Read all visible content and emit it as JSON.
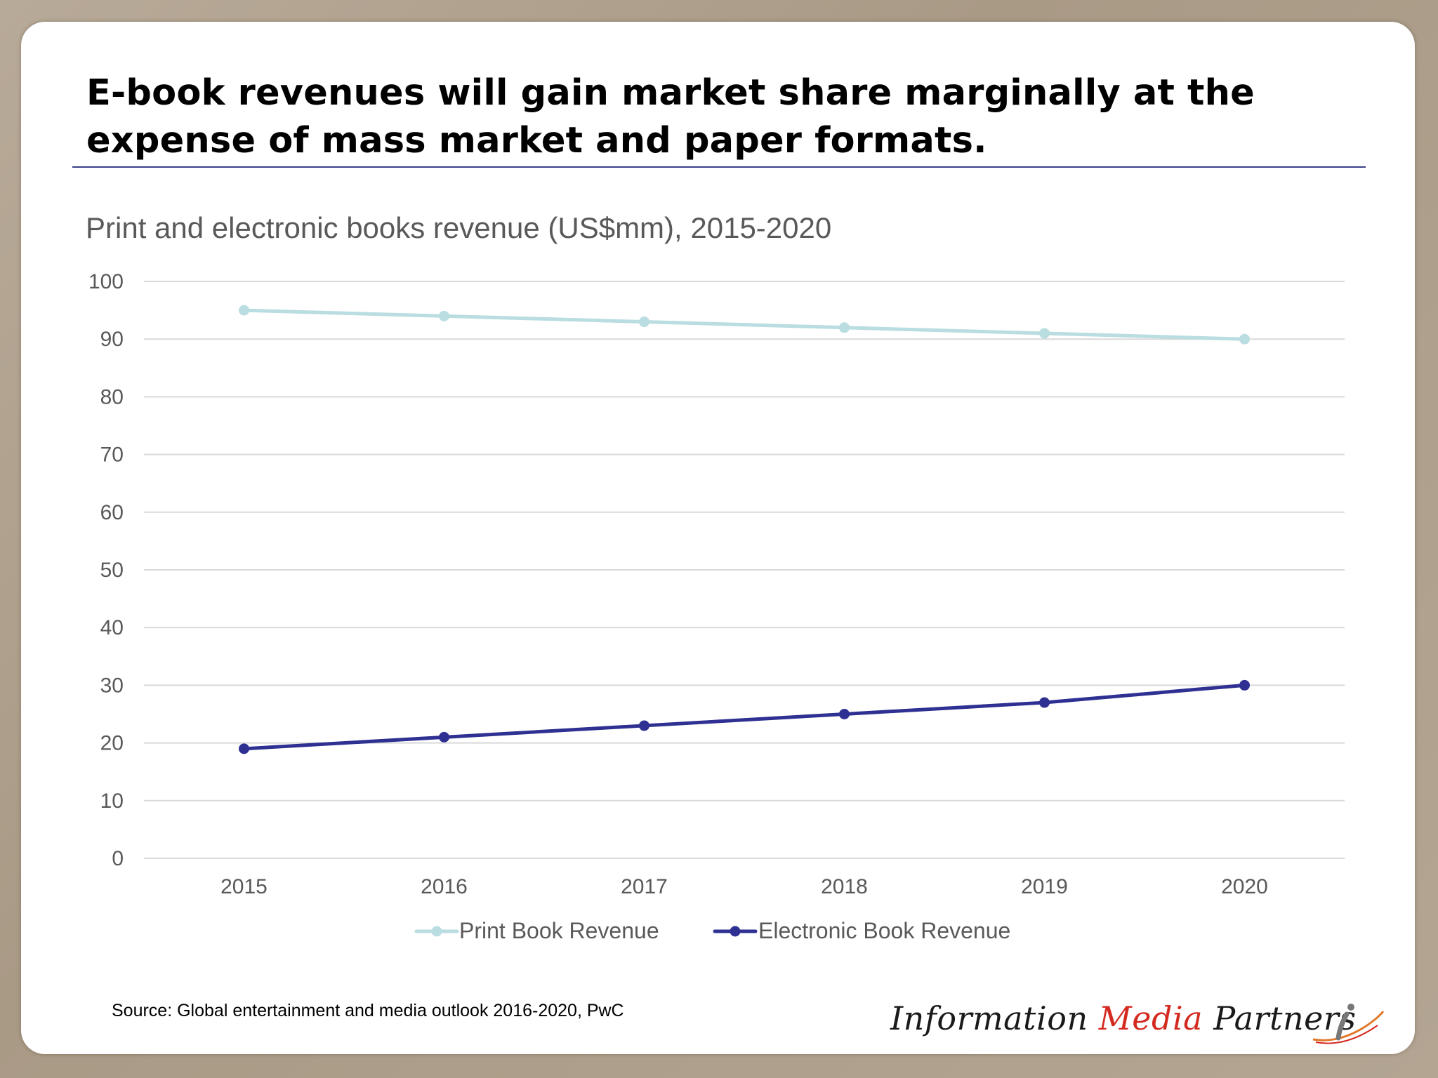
{
  "headline": "E-book revenues will gain market share marginally at the expense of mass market and paper formats.",
  "source": "Source: Global entertainment and media outlook 2016-2020, PwC",
  "logo": {
    "part1": "Information",
    "part2": "Media",
    "part3": "Partners",
    "icon": "stylized-i-swoosh-icon"
  },
  "colors": {
    "print": "#b9dde0",
    "electronic": "#2e3192",
    "rule": "#3a3f8a",
    "logo_accent": "#d42a20",
    "gridline": "#d9d9d9",
    "tick_text": "#595959"
  },
  "chart_data": {
    "type": "line",
    "title": "Print and electronic books revenue (US$mm), 2015-2020",
    "x": [
      "2015",
      "2016",
      "2017",
      "2018",
      "2019",
      "2020"
    ],
    "ylim": [
      0,
      100
    ],
    "yticks": [
      0,
      10,
      20,
      30,
      40,
      50,
      60,
      70,
      80,
      90,
      100
    ],
    "grid": true,
    "legend_position": "bottom",
    "series": [
      {
        "name": "Print Book Revenue",
        "values": [
          95,
          94,
          93,
          92,
          91,
          90
        ],
        "color": "#b9dde0"
      },
      {
        "name": "Electronic Book Revenue",
        "values": [
          19,
          21,
          23,
          25,
          27,
          30
        ],
        "color": "#2e3192"
      }
    ]
  }
}
